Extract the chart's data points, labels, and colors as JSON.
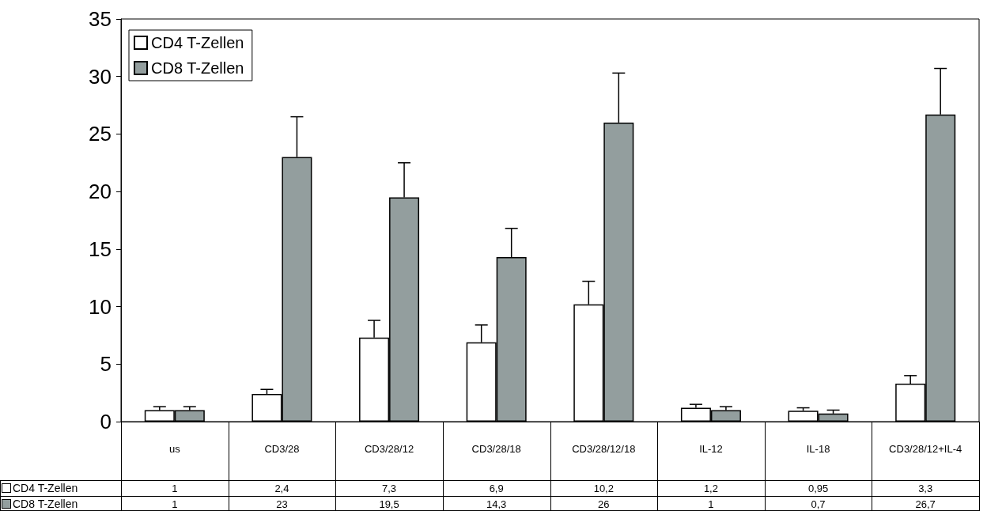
{
  "chart_data": {
    "type": "bar",
    "categories": [
      "us",
      "CD3/28",
      "CD3/28/12",
      "CD3/28/18",
      "CD3/28/12/18",
      "IL-12",
      "IL-18",
      "CD3/28/12+IL-4"
    ],
    "series": [
      {
        "name": "CD4 T-Zellen",
        "color": "#ffffff",
        "values": [
          1,
          2.4,
          7.3,
          6.9,
          10.2,
          1.2,
          0.95,
          3.3
        ],
        "value_labels": [
          "1",
          "2,4",
          "7,3",
          "6,9",
          "10,2",
          "1,2",
          "0,95",
          "3,3"
        ],
        "errors": [
          [
            1,
            1.3
          ],
          [
            2.4,
            2.8
          ],
          [
            7.3,
            8.8
          ],
          [
            6.9,
            8.4
          ],
          [
            10.2,
            12.2
          ],
          [
            1.2,
            1.5
          ],
          [
            0.95,
            1.2
          ],
          [
            3.3,
            4
          ]
        ]
      },
      {
        "name": "CD8 T-Zellen",
        "color": "#939e9e",
        "values": [
          1,
          23,
          19.5,
          14.3,
          26,
          1,
          0.7,
          26.7
        ],
        "value_labels": [
          "1",
          "23",
          "19,5",
          "14,3",
          "26",
          "1",
          "0,7",
          "26,7"
        ],
        "errors": [
          [
            1,
            1.3
          ],
          [
            23,
            26.5
          ],
          [
            19.5,
            22.5
          ],
          [
            14.3,
            16.8
          ],
          [
            26,
            30.3
          ],
          [
            1,
            1.3
          ],
          [
            0.7,
            1
          ],
          [
            26.7,
            30.7
          ]
        ]
      }
    ],
    "ylim": [
      0,
      35
    ],
    "yticks": [
      0,
      5,
      10,
      15,
      20,
      25,
      30,
      35
    ],
    "grid": false,
    "legend": "top left"
  }
}
